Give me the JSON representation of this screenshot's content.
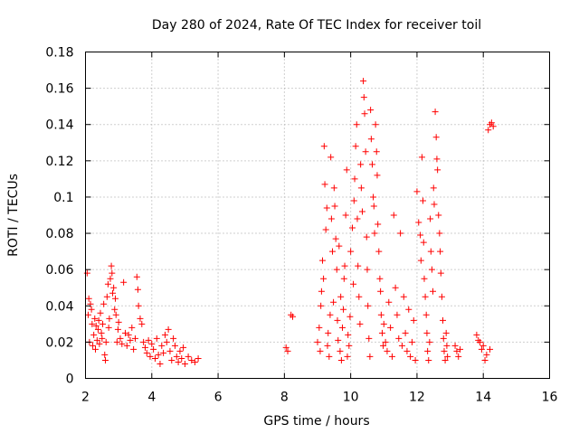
{
  "chart_data": {
    "type": "scatter",
    "title": "Day 280 of 2024, Rate Of TEC Index for receiver toil",
    "xlabel": "GPS time / hours",
    "ylabel": "ROTI / TECUs",
    "xlim": [
      2,
      16
    ],
    "ylim": [
      0,
      0.18
    ],
    "xticks": [
      2,
      4,
      6,
      8,
      10,
      12,
      14,
      16
    ],
    "xtick_labels": [
      "2",
      "4",
      "6",
      "8",
      "10",
      "12",
      "14",
      "16"
    ],
    "yticks": [
      0,
      0.02,
      0.04,
      0.06,
      0.08,
      0.1,
      0.12,
      0.14,
      0.16,
      0.18
    ],
    "ytick_labels": [
      "0",
      "0.02",
      "0.04",
      "0.06",
      "0.08",
      "0.1",
      "0.12",
      "0.14",
      "0.16",
      "0.18"
    ],
    "grid": true,
    "marker": "+",
    "color": "#ff0000",
    "series": [
      {
        "name": "ROTI",
        "points": [
          [
            2.05,
            0.058
          ],
          [
            2.08,
            0.035
          ],
          [
            2.1,
            0.044
          ],
          [
            2.12,
            0.02
          ],
          [
            2.15,
            0.041
          ],
          [
            2.18,
            0.038
          ],
          [
            2.2,
            0.03
          ],
          [
            2.22,
            0.018
          ],
          [
            2.25,
            0.024
          ],
          [
            2.28,
            0.033
          ],
          [
            2.3,
            0.016
          ],
          [
            2.32,
            0.029
          ],
          [
            2.35,
            0.021
          ],
          [
            2.38,
            0.027
          ],
          [
            2.4,
            0.032
          ],
          [
            2.42,
            0.019
          ],
          [
            2.45,
            0.036
          ],
          [
            2.48,
            0.025
          ],
          [
            2.5,
            0.022
          ],
          [
            2.52,
            0.03
          ],
          [
            2.55,
            0.041
          ],
          [
            2.58,
            0.013
          ],
          [
            2.6,
            0.01
          ],
          [
            2.62,
            0.02
          ],
          [
            2.65,
            0.045
          ],
          [
            2.68,
            0.052
          ],
          [
            2.7,
            0.028
          ],
          [
            2.72,
            0.033
          ],
          [
            2.75,
            0.055
          ],
          [
            2.78,
            0.062
          ],
          [
            2.8,
            0.058
          ],
          [
            2.82,
            0.047
          ],
          [
            2.85,
            0.05
          ],
          [
            2.88,
            0.038
          ],
          [
            2.9,
            0.044
          ],
          [
            2.92,
            0.035
          ],
          [
            2.95,
            0.02
          ],
          [
            2.98,
            0.027
          ],
          [
            3.0,
            0.031
          ],
          [
            3.05,
            0.022
          ],
          [
            3.1,
            0.019
          ],
          [
            3.15,
            0.053
          ],
          [
            3.2,
            0.025
          ],
          [
            3.25,
            0.018
          ],
          [
            3.3,
            0.024
          ],
          [
            3.35,
            0.021
          ],
          [
            3.4,
            0.028
          ],
          [
            3.45,
            0.016
          ],
          [
            3.5,
            0.022
          ],
          [
            3.55,
            0.056
          ],
          [
            3.58,
            0.049
          ],
          [
            3.6,
            0.04
          ],
          [
            3.65,
            0.033
          ],
          [
            3.7,
            0.03
          ],
          [
            3.75,
            0.02
          ],
          [
            3.8,
            0.017
          ],
          [
            3.85,
            0.014
          ],
          [
            3.9,
            0.021
          ],
          [
            3.95,
            0.012
          ],
          [
            4.0,
            0.019
          ],
          [
            4.05,
            0.016
          ],
          [
            4.1,
            0.011
          ],
          [
            4.15,
            0.022
          ],
          [
            4.2,
            0.013
          ],
          [
            4.25,
            0.008
          ],
          [
            4.3,
            0.018
          ],
          [
            4.35,
            0.014
          ],
          [
            4.4,
            0.024
          ],
          [
            4.45,
            0.02
          ],
          [
            4.5,
            0.027
          ],
          [
            4.55,
            0.015
          ],
          [
            4.6,
            0.01
          ],
          [
            4.65,
            0.022
          ],
          [
            4.7,
            0.018
          ],
          [
            4.75,
            0.012
          ],
          [
            4.8,
            0.009
          ],
          [
            4.85,
            0.015
          ],
          [
            4.9,
            0.011
          ],
          [
            4.95,
            0.017
          ],
          [
            5.0,
            0.008
          ],
          [
            5.1,
            0.012
          ],
          [
            5.2,
            0.01
          ],
          [
            5.3,
            0.009
          ],
          [
            5.4,
            0.011
          ],
          [
            8.05,
            0.017
          ],
          [
            8.1,
            0.015
          ],
          [
            8.2,
            0.035
          ],
          [
            8.25,
            0.034
          ],
          [
            9.0,
            0.02
          ],
          [
            9.05,
            0.028
          ],
          [
            9.08,
            0.015
          ],
          [
            9.1,
            0.04
          ],
          [
            9.12,
            0.048
          ],
          [
            9.15,
            0.065
          ],
          [
            9.18,
            0.055
          ],
          [
            9.2,
            0.128
          ],
          [
            9.22,
            0.107
          ],
          [
            9.25,
            0.082
          ],
          [
            9.28,
            0.094
          ],
          [
            9.3,
            0.018
          ],
          [
            9.32,
            0.025
          ],
          [
            9.35,
            0.012
          ],
          [
            9.38,
            0.035
          ],
          [
            9.4,
            0.122
          ],
          [
            9.42,
            0.088
          ],
          [
            9.45,
            0.07
          ],
          [
            9.48,
            0.042
          ],
          [
            9.5,
            0.105
          ],
          [
            9.52,
            0.095
          ],
          [
            9.55,
            0.077
          ],
          [
            9.58,
            0.06
          ],
          [
            9.6,
            0.032
          ],
          [
            9.62,
            0.021
          ],
          [
            9.65,
            0.073
          ],
          [
            9.68,
            0.015
          ],
          [
            9.7,
            0.045
          ],
          [
            9.72,
            0.01
          ],
          [
            9.75,
            0.028
          ],
          [
            9.78,
            0.038
          ],
          [
            9.8,
            0.055
          ],
          [
            9.82,
            0.062
          ],
          [
            9.85,
            0.09
          ],
          [
            9.88,
            0.115
          ],
          [
            9.9,
            0.012
          ],
          [
            9.92,
            0.024
          ],
          [
            9.95,
            0.018
          ],
          [
            9.98,
            0.034
          ],
          [
            10.0,
            0.07
          ],
          [
            10.05,
            0.083
          ],
          [
            10.08,
            0.052
          ],
          [
            10.1,
            0.098
          ],
          [
            10.12,
            0.11
          ],
          [
            10.15,
            0.128
          ],
          [
            10.18,
            0.14
          ],
          [
            10.2,
            0.088
          ],
          [
            10.22,
            0.062
          ],
          [
            10.25,
            0.045
          ],
          [
            10.28,
            0.03
          ],
          [
            10.3,
            0.118
          ],
          [
            10.32,
            0.105
          ],
          [
            10.35,
            0.092
          ],
          [
            10.38,
            0.164
          ],
          [
            10.4,
            0.155
          ],
          [
            10.42,
            0.146
          ],
          [
            10.45,
            0.125
          ],
          [
            10.48,
            0.078
          ],
          [
            10.5,
            0.06
          ],
          [
            10.52,
            0.04
          ],
          [
            10.55,
            0.022
          ],
          [
            10.58,
            0.012
          ],
          [
            10.6,
            0.148
          ],
          [
            10.62,
            0.132
          ],
          [
            10.65,
            0.118
          ],
          [
            10.68,
            0.1
          ],
          [
            10.7,
            0.095
          ],
          [
            10.72,
            0.08
          ],
          [
            10.75,
            0.14
          ],
          [
            10.78,
            0.125
          ],
          [
            10.8,
            0.112
          ],
          [
            10.82,
            0.085
          ],
          [
            10.85,
            0.07
          ],
          [
            10.88,
            0.055
          ],
          [
            10.9,
            0.048
          ],
          [
            10.92,
            0.035
          ],
          [
            10.95,
            0.025
          ],
          [
            10.98,
            0.018
          ],
          [
            11.0,
            0.03
          ],
          [
            11.05,
            0.02
          ],
          [
            11.1,
            0.015
          ],
          [
            11.15,
            0.042
          ],
          [
            11.2,
            0.028
          ],
          [
            11.25,
            0.012
          ],
          [
            11.3,
            0.09
          ],
          [
            11.35,
            0.05
          ],
          [
            11.4,
            0.035
          ],
          [
            11.45,
            0.022
          ],
          [
            11.5,
            0.08
          ],
          [
            11.55,
            0.018
          ],
          [
            11.6,
            0.045
          ],
          [
            11.65,
            0.025
          ],
          [
            11.7,
            0.015
          ],
          [
            11.75,
            0.038
          ],
          [
            11.8,
            0.012
          ],
          [
            11.85,
            0.02
          ],
          [
            11.9,
            0.032
          ],
          [
            11.95,
            0.01
          ],
          [
            12.0,
            0.103
          ],
          [
            12.05,
            0.086
          ],
          [
            12.1,
            0.079
          ],
          [
            12.12,
            0.065
          ],
          [
            12.15,
            0.122
          ],
          [
            12.18,
            0.098
          ],
          [
            12.2,
            0.075
          ],
          [
            12.22,
            0.055
          ],
          [
            12.25,
            0.045
          ],
          [
            12.28,
            0.035
          ],
          [
            12.3,
            0.025
          ],
          [
            12.32,
            0.015
          ],
          [
            12.35,
            0.01
          ],
          [
            12.38,
            0.02
          ],
          [
            12.4,
            0.088
          ],
          [
            12.42,
            0.07
          ],
          [
            12.45,
            0.06
          ],
          [
            12.48,
            0.048
          ],
          [
            12.5,
            0.105
          ],
          [
            12.52,
            0.096
          ],
          [
            12.55,
            0.147
          ],
          [
            12.58,
            0.133
          ],
          [
            12.6,
            0.121
          ],
          [
            12.62,
            0.115
          ],
          [
            12.65,
            0.09
          ],
          [
            12.68,
            0.08
          ],
          [
            12.7,
            0.07
          ],
          [
            12.72,
            0.058
          ],
          [
            12.75,
            0.045
          ],
          [
            12.78,
            0.032
          ],
          [
            12.8,
            0.022
          ],
          [
            12.82,
            0.015
          ],
          [
            12.85,
            0.01
          ],
          [
            12.88,
            0.025
          ],
          [
            12.9,
            0.018
          ],
          [
            12.92,
            0.012
          ],
          [
            13.15,
            0.018
          ],
          [
            13.2,
            0.015
          ],
          [
            13.25,
            0.012
          ],
          [
            13.3,
            0.016
          ],
          [
            13.8,
            0.024
          ],
          [
            13.85,
            0.021
          ],
          [
            13.9,
            0.02
          ],
          [
            13.95,
            0.016
          ],
          [
            14.0,
            0.018
          ],
          [
            14.05,
            0.01
          ],
          [
            14.1,
            0.013
          ],
          [
            14.2,
            0.016
          ],
          [
            14.15,
            0.137
          ],
          [
            14.2,
            0.14
          ],
          [
            14.25,
            0.141
          ],
          [
            14.3,
            0.139
          ]
        ]
      }
    ]
  }
}
